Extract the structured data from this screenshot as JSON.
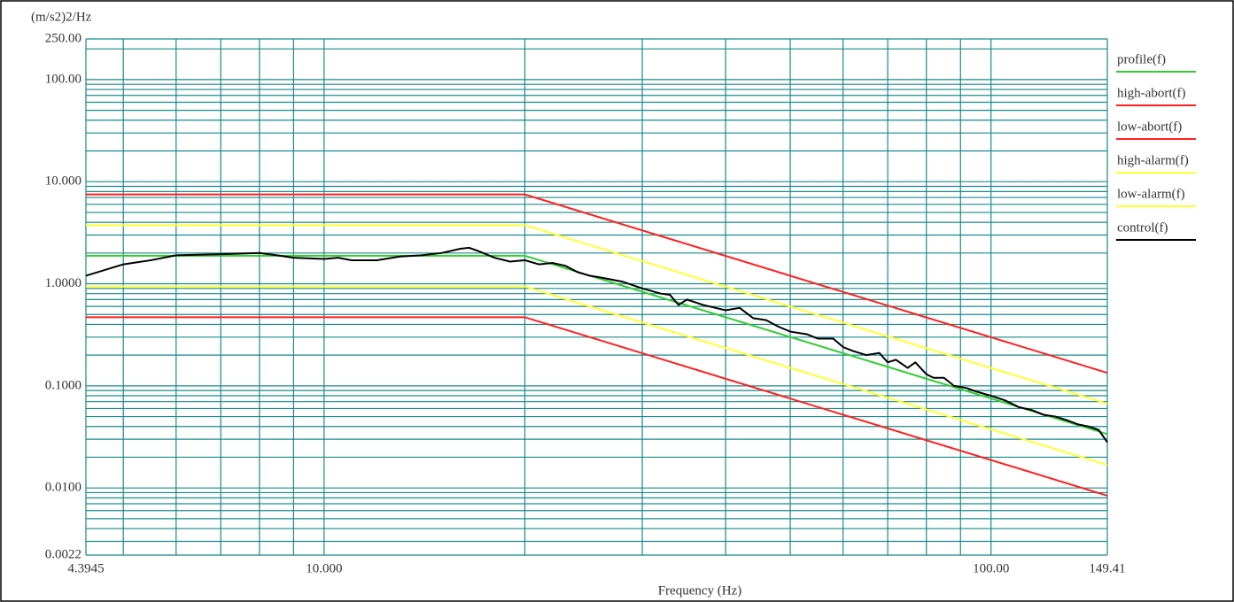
{
  "chart_data": {
    "type": "line",
    "y_label": "(m/s2)2/Hz",
    "x_label": "Frequency (Hz)",
    "log_x": true,
    "log_y": true,
    "grid": true,
    "legend": "right",
    "xlim": [
      4.3945,
      149.41
    ],
    "ylim": [
      0.0022,
      250
    ],
    "xticks": [
      4.3945,
      {
        "value": 10,
        "label": "10.000"
      },
      {
        "value": 100,
        "label": "100.00"
      },
      149.41
    ],
    "yticks": [
      {
        "value": 0.0022,
        "label": "0.0022"
      },
      {
        "value": 0.01,
        "label": "0.0100"
      },
      {
        "value": 0.1,
        "label": "0.1000"
      },
      {
        "value": 1,
        "label": "1.0000"
      },
      {
        "value": 10,
        "label": "10.000"
      },
      {
        "value": 100,
        "label": "100.00"
      },
      {
        "value": 250,
        "label": "250.00"
      }
    ],
    "x_minor_gridlines": [
      5,
      6,
      7,
      8,
      9,
      20,
      30,
      40,
      50,
      60,
      70,
      80,
      90
    ],
    "y_minor_gridlines": [
      0.003,
      0.004,
      0.005,
      0.006,
      0.007,
      0.008,
      0.009,
      0.02,
      0.03,
      0.04,
      0.05,
      0.06,
      0.07,
      0.08,
      0.09,
      0.2,
      0.3,
      0.4,
      0.5,
      0.6,
      0.7,
      0.8,
      0.9,
      2,
      3,
      4,
      5,
      6,
      7,
      8,
      9,
      20,
      30,
      40,
      50,
      60,
      70,
      80,
      90,
      200
    ],
    "series": [
      {
        "name": "profile(f)",
        "color": "#33cc33",
        "x": [
          4.3945,
          20,
          149.41
        ],
        "values": [
          1.88,
          1.88,
          0.0337
        ]
      },
      {
        "name": "high-abort(f)",
        "color": "#ff2020",
        "x": [
          4.3945,
          20,
          149.41
        ],
        "values": [
          7.5,
          7.5,
          0.134
        ]
      },
      {
        "name": "low-abort(f)",
        "color": "#ff2020",
        "x": [
          4.3945,
          20,
          149.41
        ],
        "values": [
          0.47,
          0.47,
          0.0084
        ]
      },
      {
        "name": "high-alarm(f)",
        "color": "#ffff33",
        "x": [
          4.3945,
          20,
          149.41
        ],
        "values": [
          3.75,
          3.75,
          0.067
        ]
      },
      {
        "name": "low-alarm(f)",
        "color": "#ffff33",
        "x": [
          4.3945,
          20,
          149.41
        ],
        "values": [
          0.94,
          0.94,
          0.0168
        ]
      },
      {
        "name": "control(f)",
        "color": "#000000",
        "x": [
          4.3945,
          5,
          5.5,
          6,
          7,
          8,
          8.5,
          9,
          10,
          10.5,
          11,
          12,
          13,
          14,
          15,
          16,
          16.5,
          17,
          18,
          19,
          20,
          21,
          22,
          23,
          24,
          25,
          26,
          28,
          30,
          32,
          33,
          34,
          35,
          37,
          40,
          42,
          44,
          46,
          48,
          50,
          53,
          55,
          58,
          60,
          62,
          65,
          68,
          70,
          72,
          75,
          77,
          80,
          82,
          85,
          88,
          92,
          95,
          100,
          105,
          110,
          115,
          120,
          125,
          130,
          135,
          140,
          145,
          149.41
        ],
        "values": [
          1.2,
          1.55,
          1.7,
          1.9,
          1.95,
          2.0,
          1.9,
          1.8,
          1.75,
          1.8,
          1.7,
          1.7,
          1.85,
          1.9,
          2.0,
          2.2,
          2.25,
          2.1,
          1.8,
          1.65,
          1.7,
          1.55,
          1.6,
          1.5,
          1.3,
          1.2,
          1.15,
          1.05,
          0.9,
          0.8,
          0.78,
          0.62,
          0.7,
          0.62,
          0.55,
          0.58,
          0.46,
          0.44,
          0.38,
          0.34,
          0.32,
          0.29,
          0.29,
          0.24,
          0.22,
          0.2,
          0.21,
          0.17,
          0.18,
          0.15,
          0.17,
          0.13,
          0.12,
          0.12,
          0.1,
          0.095,
          0.088,
          0.08,
          0.072,
          0.062,
          0.058,
          0.052,
          0.05,
          0.046,
          0.042,
          0.04,
          0.037,
          0.028
        ]
      }
    ]
  }
}
